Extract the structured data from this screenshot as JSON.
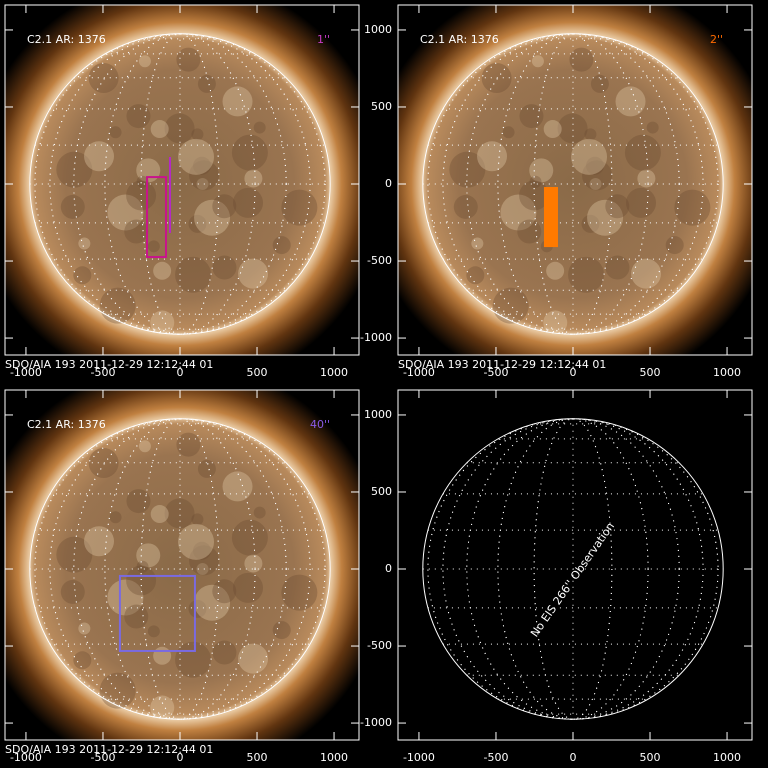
{
  "chart_data": [
    {
      "type": "solar-image",
      "title": "C2.1 AR: 1376",
      "label": "1''",
      "label_color": "#c83cc8",
      "footer": "SDO/AIA 193  2011-12-29 12:12:44 01",
      "xlim": [
        -1136,
        1162
      ],
      "ylim": [
        -1110,
        1162
      ],
      "xticks": [
        -1000,
        -500,
        0,
        500,
        1000
      ],
      "yticks": [
        -1000,
        -500,
        0,
        500,
        1000
      ],
      "overlays": [
        {
          "shape": "rect",
          "x": [
            -214,
            -91
          ],
          "y": [
            45,
            -474
          ],
          "color": "#c8148c"
        },
        {
          "shape": "line",
          "x": [
            -65,
            -65
          ],
          "y": [
            175,
            -318
          ],
          "color": "#b428c8"
        }
      ]
    },
    {
      "type": "solar-image",
      "title": "C2.1 AR: 1376",
      "label": "2''",
      "label_color": "#ff6a00",
      "footer": "SDO/AIA 193  2011-12-29 12:12:44 01",
      "xlim": [
        -1136,
        1162
      ],
      "ylim": [
        -1110,
        1162
      ],
      "xticks": [
        -1000,
        -500,
        0,
        500,
        1000
      ],
      "yticks": [
        -1000,
        -500,
        0,
        500,
        1000
      ],
      "overlays": [
        {
          "shape": "filled-rect",
          "x": [
            -182,
            -104
          ],
          "y": [
            -26,
            -403
          ],
          "color": "#ff7a00"
        }
      ]
    },
    {
      "type": "solar-image",
      "title": "C2.1 AR: 1376",
      "label": "40''",
      "label_color": "#8a5ae6",
      "footer": "SDO/AIA 193  2011-12-29 12:12:44 01",
      "xlim": [
        -1136,
        1162
      ],
      "ylim": [
        -1110,
        1162
      ],
      "xticks": [
        -1000,
        -500,
        0,
        500,
        1000
      ],
      "yticks": [
        -1000,
        -500,
        0,
        500,
        1000
      ],
      "overlays": [
        {
          "shape": "rect",
          "x": [
            -390,
            97
          ],
          "y": [
            -45,
            -532
          ],
          "color": "#7a6ae0"
        }
      ]
    },
    {
      "type": "empty-disk",
      "message": "No EIS 266'' Observation",
      "xlim": [
        -1136,
        1162
      ],
      "ylim": [
        -1110,
        1162
      ],
      "xticks": [
        -1000,
        -500,
        0,
        500,
        1000
      ],
      "yticks": [
        -1000,
        -500,
        0,
        500,
        1000
      ]
    }
  ]
}
